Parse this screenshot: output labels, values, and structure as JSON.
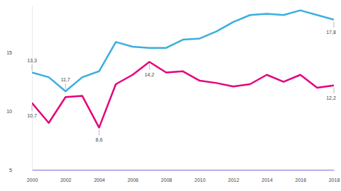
{
  "chart_data": {
    "type": "line",
    "x": [
      2000,
      2001,
      2002,
      2003,
      2004,
      2005,
      2006,
      2007,
      2008,
      2009,
      2010,
      2011,
      2012,
      2013,
      2014,
      2015,
      2016,
      2017,
      2018
    ],
    "xlim": [
      2000,
      2018
    ],
    "xticks": [
      2000,
      2002,
      2004,
      2006,
      2008,
      2010,
      2012,
      2014,
      2016,
      2018
    ],
    "ylim": [
      5,
      19
    ],
    "yticks": [
      5,
      10,
      15
    ],
    "grid": false,
    "series": [
      {
        "color": "#3aaee0",
        "values": [
          13.3,
          12.9,
          11.7,
          12.9,
          13.4,
          15.9,
          15.5,
          15.4,
          15.4,
          16.1,
          16.2,
          16.8,
          17.6,
          18.2,
          18.3,
          18.2,
          18.6,
          18.2,
          17.8
        ],
        "value_labels": [
          "13,3",
          null,
          "11,7",
          null,
          null,
          null,
          null,
          null,
          null,
          null,
          null,
          null,
          null,
          null,
          null,
          null,
          null,
          null,
          "17,8"
        ]
      },
      {
        "color": "#e5007d",
        "values": [
          10.7,
          9.0,
          11.2,
          11.3,
          8.6,
          12.3,
          13.1,
          14.2,
          13.3,
          13.4,
          12.6,
          12.4,
          12.1,
          12.3,
          13.1,
          12.5,
          13.1,
          12.0,
          12.2
        ],
        "value_labels": [
          "10,7",
          null,
          null,
          null,
          "8,6",
          null,
          null,
          "14,2",
          null,
          null,
          null,
          null,
          null,
          null,
          null,
          null,
          null,
          null,
          "12,2"
        ]
      }
    ]
  }
}
